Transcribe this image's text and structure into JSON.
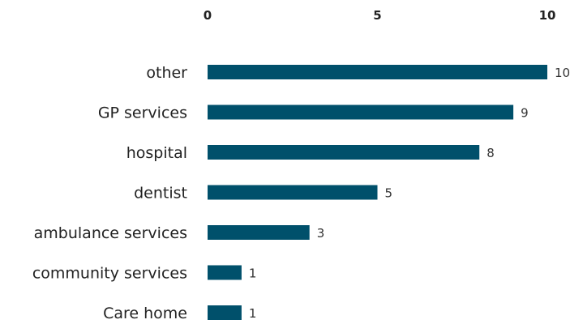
{
  "chart_data": {
    "type": "bar",
    "orientation": "horizontal",
    "categories": [
      "other",
      "GP services",
      "hospital",
      "dentist",
      "ambulance services",
      "community services",
      "Care home"
    ],
    "values": [
      10,
      9,
      8,
      5,
      3,
      1,
      1
    ],
    "xlim": [
      0,
      10
    ],
    "xticks": [
      "0",
      "5",
      "10"
    ],
    "x_axis_position": "top",
    "grid": false,
    "bar_color": "#00506b",
    "data_labels": [
      "10",
      "9",
      "8",
      "5",
      "3",
      "1",
      "1"
    ]
  }
}
